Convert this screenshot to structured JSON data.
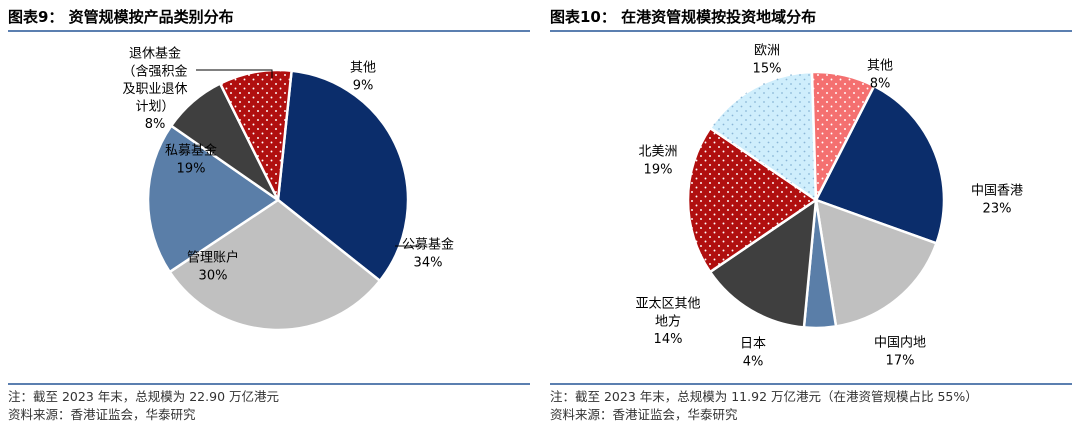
{
  "charts": [
    {
      "title": "图表9：  资管规模按产品类别分布",
      "note": "注：截至 2023 年末，总规模为 22.90 万亿港元",
      "source": "资料来源：香港证监会，华泰研究",
      "chart_data": {
        "type": "pie",
        "start_angle_deg": 6,
        "slices": [
          {
            "label": "公募基金",
            "value": 34,
            "display": "34%",
            "color": "#0b2d6b",
            "pattern": "none"
          },
          {
            "label": "管理账户",
            "value": 30,
            "display": "30%",
            "color": "#c0c0c0",
            "pattern": "none"
          },
          {
            "label": "私募基金",
            "value": 19,
            "display": "19%",
            "color": "#5a7ea8",
            "pattern": "none"
          },
          {
            "label": "退休基金（含强积金及职业退休计划）",
            "value": 8,
            "display": "8%",
            "color": "#3f3f3f",
            "pattern": "none"
          },
          {
            "label": "其他",
            "value": 9,
            "display": "9%",
            "color": "#b00f0f",
            "pattern": "dots"
          }
        ]
      }
    },
    {
      "title": "图表10：  在港资管规模按投资地域分布",
      "note": "注：截至 2023 年末，总规模为 11.92 万亿港元（在港资管规模占比 55%）",
      "source": "资料来源：香港证监会，华泰研究",
      "chart_data": {
        "type": "pie",
        "start_angle_deg": 27,
        "slices": [
          {
            "label": "中国香港",
            "value": 23,
            "display": "23%",
            "color": "#0b2d6b",
            "pattern": "none"
          },
          {
            "label": "中国内地",
            "value": 17,
            "display": "17%",
            "color": "#c0c0c0",
            "pattern": "none"
          },
          {
            "label": "日本",
            "value": 4,
            "display": "4%",
            "color": "#5a7ea8",
            "pattern": "none"
          },
          {
            "label": "亚太区其他地方",
            "value": 14,
            "display": "14%",
            "color": "#3f3f3f",
            "pattern": "none"
          },
          {
            "label": "北美洲",
            "value": 19,
            "display": "19%",
            "color": "#b00f0f",
            "pattern": "dots"
          },
          {
            "label": "欧洲",
            "value": 15,
            "display": "15%",
            "color": "#cfeefc",
            "pattern": "dots-blue"
          },
          {
            "label": "其他",
            "value": 8,
            "display": "8%",
            "color": "#f47070",
            "pattern": "dots"
          }
        ]
      }
    }
  ]
}
